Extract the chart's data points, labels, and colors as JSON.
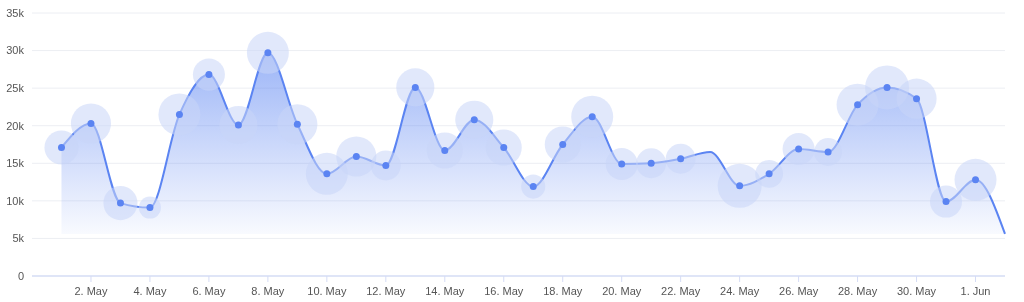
{
  "chart_data": {
    "type": "area",
    "x": [
      "--05-01",
      "--05-02",
      "--05-03",
      "--05-04",
      "--05-05",
      "--05-06",
      "--05-07",
      "--05-08",
      "--05-09",
      "--05-10",
      "--05-11",
      "--05-12",
      "--05-13",
      "--05-14",
      "--05-15",
      "--05-16",
      "--05-17",
      "--05-18",
      "--05-19",
      "--05-20",
      "--05-21",
      "--05-22",
      "--05-23",
      "--05-24",
      "--05-25",
      "--05-26",
      "--05-27",
      "--05-28",
      "--05-29",
      "--05-30",
      "--05-31",
      "--06-01",
      "--06-02"
    ],
    "series": [
      {
        "color": "#5b84f2",
        "values": [
          17.1,
          20.3,
          9.7,
          9.1,
          21.5,
          26.8,
          20.1,
          29.7,
          20.2,
          13.6,
          15.9,
          14.7,
          25.1,
          16.7,
          20.8,
          17.1,
          11.9,
          17.5,
          21.2,
          14.9,
          15.0,
          15.6,
          16.5,
          12.0,
          13.6,
          16.9,
          16.5,
          22.8,
          25.1,
          23.6,
          9.9,
          12.8,
          5.6
        ]
      },
      {
        "type": "bubble",
        "color": "#c8d5f8",
        "values": [
          17.1,
          20.3,
          9.7,
          9.1,
          21.5,
          26.8,
          20.1,
          29.7,
          20.2,
          13.6,
          15.9,
          14.7,
          25.1,
          16.7,
          20.8,
          17.1,
          11.9,
          17.5,
          21.2,
          14.9,
          15.0,
          15.6,
          null,
          12.0,
          13.6,
          16.9,
          16.5,
          22.8,
          25.1,
          23.6,
          9.9,
          12.8,
          null
        ],
        "sizes": [
          0.6,
          0.83,
          0.6,
          0.25,
          0.91,
          0.53,
          0.75,
          0.91,
          0.83,
          0.91,
          0.83,
          0.46,
          0.75,
          0.67,
          0.75,
          0.67,
          0.3,
          0.67,
          0.91,
          0.53,
          0.46,
          0.46,
          null,
          1,
          0.4,
          0.53,
          0.4,
          0.91,
          1,
          0.83,
          0.53,
          0.91,
          null
        ]
      }
    ],
    "xlim": [
      "--04-30",
      "--06-02"
    ],
    "xticks": [
      {
        "value": "--05-02",
        "label": "2. May"
      },
      {
        "value": "--05-04",
        "label": "4. May"
      },
      {
        "value": "--05-06",
        "label": "6. May"
      },
      {
        "value": "--05-08",
        "label": "8. May"
      },
      {
        "value": "--05-10",
        "label": "10. May"
      },
      {
        "value": "--05-12",
        "label": "12. May"
      },
      {
        "value": "--05-14",
        "label": "14. May"
      },
      {
        "value": "--05-16",
        "label": "16. May"
      },
      {
        "value": "--05-18",
        "label": "18. May"
      },
      {
        "value": "--05-20",
        "label": "20. May"
      },
      {
        "value": "--05-22",
        "label": "22. May"
      },
      {
        "value": "--05-24",
        "label": "24. May"
      },
      {
        "value": "--05-26",
        "label": "26. May"
      },
      {
        "value": "--05-28",
        "label": "28. May"
      },
      {
        "value": "--05-30",
        "label": "30. May"
      },
      {
        "value": "--06-01",
        "label": "1. Jun"
      }
    ],
    "ylim": [
      0,
      35
    ],
    "yticks": [
      {
        "value": 0,
        "label": "0"
      },
      {
        "value": 5,
        "label": "5k"
      },
      {
        "value": 10,
        "label": "10k"
      },
      {
        "value": 15,
        "label": "15k"
      },
      {
        "value": 20,
        "label": "20k"
      },
      {
        "value": 25,
        "label": "25k"
      },
      {
        "value": 30,
        "label": "30k"
      },
      {
        "value": 35,
        "label": "35k"
      }
    ],
    "grid": "y"
  }
}
